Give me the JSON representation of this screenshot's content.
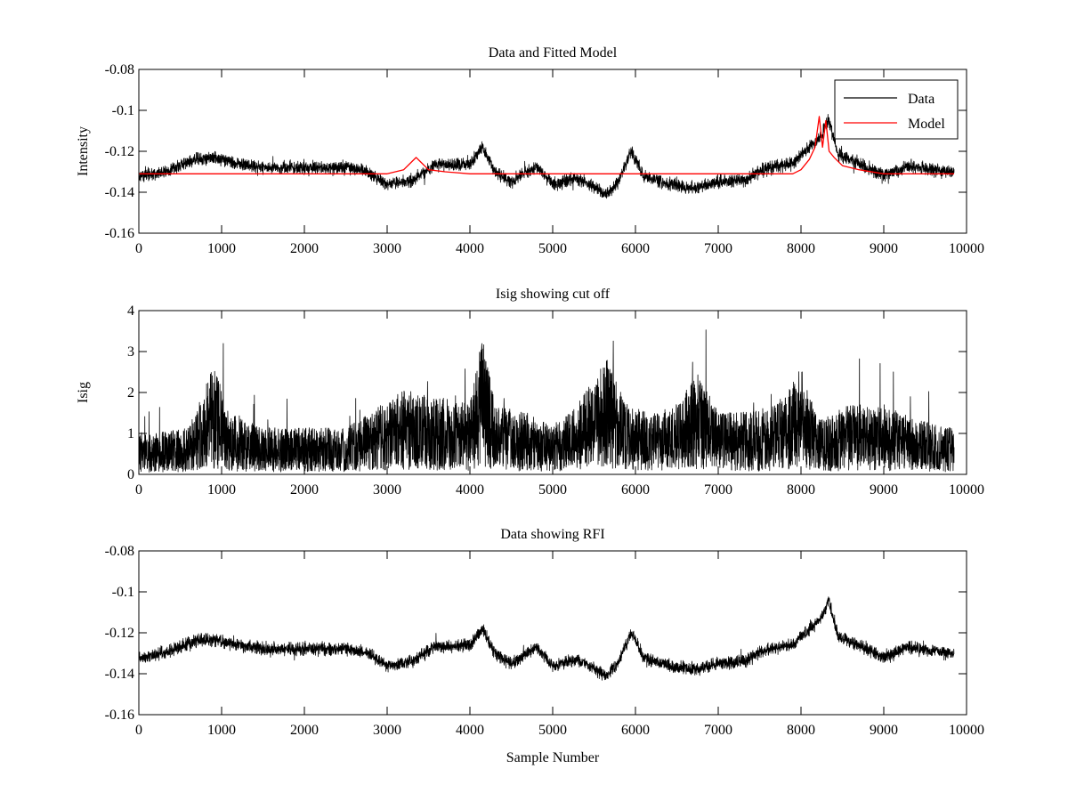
{
  "chart_data": [
    {
      "type": "line",
      "title": "Data and Fitted Model",
      "xlabel": "",
      "ylabel": "Intensity",
      "xlim": [
        0,
        10000
      ],
      "ylim": [
        -0.16,
        -0.08
      ],
      "xticks": [
        0,
        1000,
        2000,
        3000,
        4000,
        5000,
        6000,
        7000,
        8000,
        9000,
        10000
      ],
      "yticks": [
        -0.08,
        -0.1,
        -0.12,
        -0.14,
        -0.16
      ],
      "xticklabels": [
        "0",
        "1000",
        "2000",
        "3000",
        "4000",
        "5000",
        "6000",
        "7000",
        "8000",
        "9000",
        "10000"
      ],
      "yticklabels": [
        "-0.08",
        "-0.1",
        "-0.12",
        "-0.14",
        "-0.16"
      ],
      "legend": {
        "position": "top-right",
        "entries": [
          "Data",
          "Model"
        ]
      },
      "series": [
        {
          "name": "Data",
          "color": "#000000",
          "noise_amplitude": 0.0045,
          "x": [
            0,
            300,
            700,
            900,
            1200,
            1500,
            2000,
            2500,
            2700,
            3000,
            3300,
            3600,
            3800,
            4000,
            4150,
            4300,
            4500,
            4800,
            5000,
            5300,
            5650,
            5800,
            5950,
            6100,
            6400,
            6700,
            7000,
            7300,
            7600,
            7900,
            8100,
            8250,
            8330,
            8450,
            8700,
            9000,
            9300,
            9600,
            9850
          ],
          "values": [
            -0.132,
            -0.13,
            -0.124,
            -0.123,
            -0.126,
            -0.128,
            -0.128,
            -0.128,
            -0.129,
            -0.136,
            -0.134,
            -0.126,
            -0.127,
            -0.126,
            -0.118,
            -0.13,
            -0.135,
            -0.127,
            -0.136,
            -0.133,
            -0.141,
            -0.134,
            -0.12,
            -0.132,
            -0.136,
            -0.138,
            -0.135,
            -0.134,
            -0.128,
            -0.126,
            -0.118,
            -0.113,
            -0.104,
            -0.122,
            -0.126,
            -0.132,
            -0.127,
            -0.129,
            -0.13
          ]
        },
        {
          "name": "Model",
          "color": "#ff0000",
          "noise_amplitude": 0,
          "x": [
            0,
            3000,
            3200,
            3300,
            3350,
            3400,
            3500,
            3700,
            4000,
            7900,
            8000,
            8100,
            8170,
            8220,
            8260,
            8300,
            8340,
            8400,
            8500,
            8700,
            9000,
            9850
          ],
          "values": [
            -0.131,
            -0.131,
            -0.129,
            -0.125,
            -0.123,
            -0.125,
            -0.129,
            -0.13,
            -0.131,
            -0.131,
            -0.129,
            -0.124,
            -0.118,
            -0.103,
            -0.118,
            -0.105,
            -0.12,
            -0.123,
            -0.127,
            -0.129,
            -0.131,
            -0.131
          ]
        }
      ]
    },
    {
      "type": "line",
      "title": "Isig showing cut off",
      "xlabel": "",
      "ylabel": "Isig",
      "xlim": [
        0,
        10000
      ],
      "ylim": [
        0,
        4
      ],
      "xticks": [
        0,
        1000,
        2000,
        3000,
        4000,
        5000,
        6000,
        7000,
        8000,
        9000,
        10000
      ],
      "yticks": [
        0,
        1,
        2,
        3,
        4
      ],
      "xticklabels": [
        "0",
        "1000",
        "2000",
        "3000",
        "4000",
        "5000",
        "6000",
        "7000",
        "8000",
        "9000",
        "10000"
      ],
      "yticklabels": [
        "0",
        "1",
        "2",
        "3",
        "4"
      ],
      "series": [
        {
          "name": "Isig",
          "color": "#000000",
          "noise_amplitude": 1.0,
          "floor": 0,
          "x": [
            0,
            600,
            900,
            1100,
            1500,
            2000,
            2500,
            2800,
            3200,
            3600,
            4000,
            4150,
            4300,
            4700,
            5000,
            5300,
            5650,
            5900,
            6200,
            6500,
            6750,
            7000,
            7400,
            7800,
            8000,
            8200,
            8600,
            9000,
            9400,
            9850
          ],
          "values": [
            0.5,
            0.6,
            1.4,
            0.8,
            0.6,
            0.6,
            0.6,
            0.8,
            1.1,
            1.0,
            0.9,
            1.8,
            0.9,
            0.8,
            0.6,
            0.9,
            1.5,
            0.9,
            0.8,
            0.9,
            1.3,
            0.8,
            0.8,
            1.0,
            1.4,
            0.7,
            0.9,
            0.9,
            0.7,
            0.6
          ]
        }
      ]
    },
    {
      "type": "line",
      "title": "Data showing RFI",
      "xlabel": "Sample Number",
      "ylabel": "",
      "xlim": [
        0,
        10000
      ],
      "ylim": [
        -0.16,
        -0.08
      ],
      "xticks": [
        0,
        1000,
        2000,
        3000,
        4000,
        5000,
        6000,
        7000,
        8000,
        9000,
        10000
      ],
      "yticks": [
        -0.08,
        -0.1,
        -0.12,
        -0.14,
        -0.16
      ],
      "xticklabels": [
        "0",
        "1000",
        "2000",
        "3000",
        "4000",
        "5000",
        "6000",
        "7000",
        "8000",
        "9000",
        "10000"
      ],
      "yticklabels": [
        "-0.08",
        "-0.1",
        "-0.12",
        "-0.14",
        "-0.16"
      ],
      "series": [
        {
          "name": "Data",
          "color": "#000000",
          "noise_amplitude": 0.0045,
          "x": [
            0,
            300,
            700,
            900,
            1200,
            1500,
            2000,
            2500,
            2700,
            3000,
            3300,
            3600,
            3800,
            4000,
            4150,
            4300,
            4500,
            4800,
            5000,
            5300,
            5650,
            5800,
            5950,
            6100,
            6400,
            6700,
            7000,
            7300,
            7600,
            7900,
            8100,
            8250,
            8330,
            8450,
            8700,
            9000,
            9300,
            9600,
            9850
          ],
          "values": [
            -0.132,
            -0.13,
            -0.124,
            -0.123,
            -0.126,
            -0.128,
            -0.128,
            -0.128,
            -0.129,
            -0.136,
            -0.134,
            -0.126,
            -0.127,
            -0.126,
            -0.118,
            -0.13,
            -0.135,
            -0.127,
            -0.136,
            -0.133,
            -0.141,
            -0.134,
            -0.12,
            -0.132,
            -0.136,
            -0.138,
            -0.135,
            -0.134,
            -0.128,
            -0.126,
            -0.118,
            -0.113,
            -0.104,
            -0.122,
            -0.126,
            -0.132,
            -0.127,
            -0.129,
            -0.13
          ]
        }
      ]
    }
  ]
}
